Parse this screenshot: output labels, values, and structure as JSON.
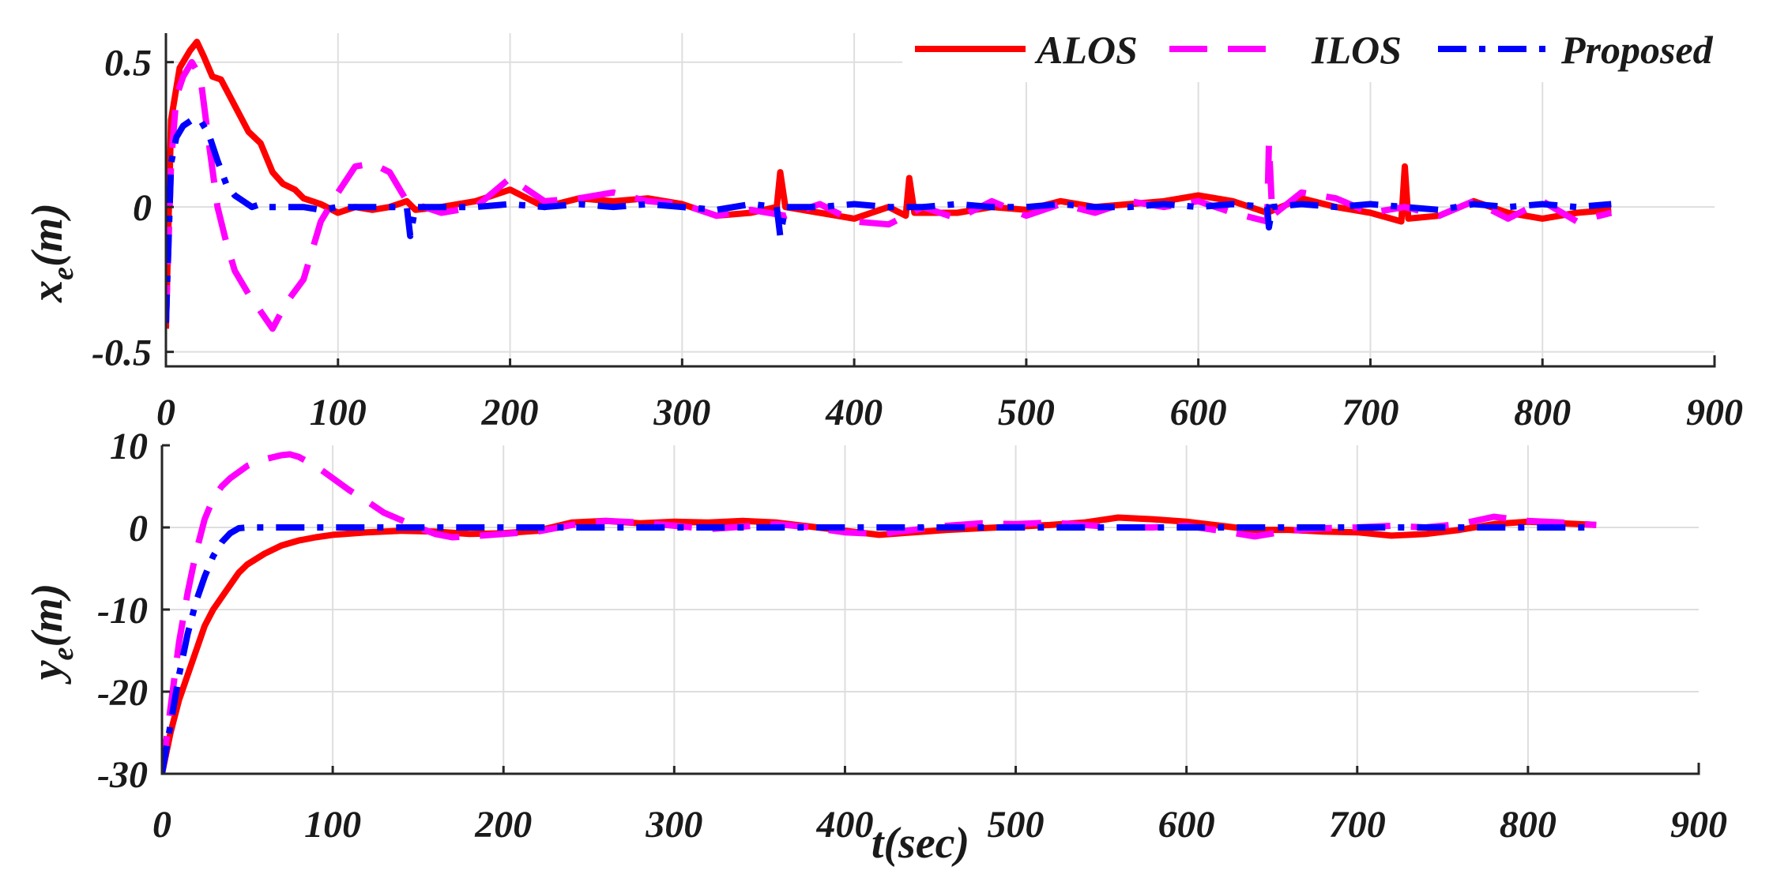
{
  "chart_data": [
    {
      "type": "line",
      "ylabel": "x",
      "ylabel_sub": "e",
      "ylabel_unit": "(m)",
      "xlabel": "",
      "xlim": [
        0,
        900
      ],
      "ylim": [
        -0.55,
        0.6
      ],
      "x_ticks": [
        "0",
        "100",
        "200",
        "300",
        "400",
        "500",
        "600",
        "700",
        "800",
        "900"
      ],
      "y_ticks": [
        {
          "value": 0.5,
          "label": "0.5"
        },
        {
          "value": 0,
          "label": "0"
        },
        {
          "value": -0.5,
          "label": "-0.5"
        }
      ],
      "grid": true,
      "legend": {
        "placement": "top-right",
        "orientation": "horizontal"
      },
      "series": [
        {
          "name": "ALOS",
          "color": "#ff0000",
          "style": "solid",
          "x": [
            0,
            3,
            8,
            14,
            18,
            22,
            27,
            32,
            40,
            48,
            55,
            62,
            68,
            75,
            80,
            90,
            100,
            110,
            120,
            130,
            140,
            145,
            160,
            180,
            200,
            220,
            240,
            260,
            280,
            300,
            320,
            340,
            355,
            357,
            360,
            380,
            400,
            420,
            430,
            432,
            435,
            460,
            480,
            500,
            520,
            540,
            560,
            580,
            600,
            620,
            640,
            660,
            680,
            700,
            718,
            720,
            722,
            740,
            760,
            780,
            800,
            820,
            840
          ],
          "y": [
            -0.42,
            0.3,
            0.48,
            0.54,
            0.57,
            0.52,
            0.45,
            0.44,
            0.35,
            0.26,
            0.22,
            0.12,
            0.08,
            0.06,
            0.03,
            0.01,
            -0.02,
            0.0,
            -0.01,
            0.0,
            0.02,
            -0.01,
            0.0,
            0.02,
            0.06,
            0.0,
            0.03,
            0.02,
            0.03,
            0.01,
            -0.03,
            -0.02,
            0.0,
            0.12,
            0.0,
            -0.02,
            -0.04,
            0.0,
            -0.03,
            0.1,
            -0.02,
            -0.02,
            0.0,
            -0.01,
            0.02,
            0.0,
            0.01,
            0.02,
            0.04,
            0.02,
            -0.02,
            0.03,
            0.0,
            -0.02,
            -0.05,
            0.14,
            -0.04,
            -0.03,
            0.02,
            -0.02,
            -0.04,
            -0.02,
            -0.01
          ]
        },
        {
          "name": "ILOS",
          "color": "#ff00ff",
          "style": "dashed",
          "x": [
            0,
            3,
            6,
            10,
            15,
            20,
            25,
            30,
            35,
            40,
            48,
            55,
            62,
            70,
            80,
            90,
            100,
            110,
            120,
            130,
            140,
            160,
            180,
            200,
            220,
            240,
            260,
            280,
            300,
            320,
            340,
            360,
            380,
            400,
            420,
            440,
            460,
            480,
            500,
            520,
            540,
            560,
            580,
            600,
            620,
            640,
            641,
            643,
            660,
            680,
            700,
            720,
            740,
            760,
            780,
            800,
            820,
            840
          ],
          "y": [
            -0.4,
            0.15,
            0.38,
            0.45,
            0.5,
            0.45,
            0.22,
            0.0,
            -0.12,
            -0.22,
            -0.3,
            -0.36,
            -0.42,
            -0.33,
            -0.25,
            -0.05,
            0.05,
            0.14,
            0.15,
            0.12,
            0.02,
            -0.02,
            0.0,
            0.1,
            0.02,
            0.03,
            0.05,
            0.02,
            0.01,
            -0.03,
            -0.01,
            -0.03,
            0.01,
            -0.05,
            -0.06,
            0.0,
            -0.04,
            0.02,
            -0.03,
            0.01,
            -0.02,
            0.02,
            0.0,
            0.02,
            -0.02,
            -0.05,
            0.22,
            -0.03,
            0.05,
            0.03,
            -0.02,
            0.0,
            -0.03,
            0.02,
            -0.04,
            0.02,
            -0.05,
            -0.02
          ]
        },
        {
          "name": "Proposed",
          "color": "#0000ff",
          "style": "dashdot",
          "x": [
            0,
            3,
            6,
            10,
            15,
            20,
            25,
            30,
            35,
            40,
            45,
            50,
            55,
            60,
            70,
            80,
            90,
            100,
            120,
            140,
            142,
            145,
            160,
            180,
            200,
            220,
            240,
            260,
            280,
            300,
            320,
            340,
            355,
            357,
            360,
            380,
            400,
            420,
            440,
            460,
            480,
            500,
            520,
            540,
            560,
            580,
            600,
            620,
            640,
            641,
            643,
            660,
            680,
            700,
            720,
            740,
            760,
            780,
            800,
            820,
            840
          ],
          "y": [
            -0.4,
            0.15,
            0.24,
            0.28,
            0.3,
            0.3,
            0.25,
            0.16,
            0.08,
            0.04,
            0.02,
            0.0,
            0.01,
            0.0,
            0.0,
            0.0,
            -0.01,
            0.0,
            0.0,
            0.0,
            -0.1,
            0.0,
            0.0,
            0.0,
            0.01,
            0.0,
            0.01,
            0.0,
            0.01,
            0.0,
            -0.01,
            0.01,
            0.0,
            -0.1,
            0.0,
            0.0,
            0.01,
            0.0,
            0.0,
            0.01,
            0.0,
            0.0,
            0.01,
            0.0,
            0.0,
            0.01,
            0.0,
            0.01,
            0.0,
            -0.07,
            0.0,
            0.01,
            0.0,
            0.01,
            0.0,
            -0.01,
            0.01,
            0.0,
            0.01,
            0.0,
            0.01
          ]
        }
      ]
    },
    {
      "type": "line",
      "ylabel": "y",
      "ylabel_sub": "e",
      "ylabel_unit": "(m)",
      "xlabel": "t(sec)",
      "xlim": [
        0,
        900
      ],
      "ylim": [
        -30,
        10
      ],
      "x_ticks": [
        "0",
        "100",
        "200",
        "300",
        "400",
        "500",
        "600",
        "700",
        "800",
        "900"
      ],
      "y_ticks": [
        {
          "value": 10,
          "label": "10"
        },
        {
          "value": 0,
          "label": "0"
        },
        {
          "value": -10,
          "label": "-10"
        },
        {
          "value": -20,
          "label": "-20"
        },
        {
          "value": -30,
          "label": "-30"
        }
      ],
      "grid": true,
      "series": [
        {
          "name": "ALOS",
          "color": "#ff0000",
          "style": "solid",
          "x": [
            0,
            5,
            10,
            15,
            20,
            25,
            30,
            35,
            40,
            45,
            50,
            60,
            70,
            80,
            90,
            100,
            120,
            140,
            160,
            180,
            200,
            220,
            240,
            260,
            280,
            300,
            320,
            340,
            360,
            380,
            400,
            420,
            440,
            460,
            480,
            500,
            520,
            540,
            560,
            580,
            600,
            620,
            640,
            660,
            680,
            700,
            720,
            740,
            760,
            780,
            800,
            820,
            840
          ],
          "y": [
            -30,
            -25,
            -21,
            -18,
            -15,
            -12,
            -10,
            -8.5,
            -7,
            -5.5,
            -4.5,
            -3.2,
            -2.2,
            -1.6,
            -1.2,
            -0.9,
            -0.6,
            -0.4,
            -0.5,
            -0.8,
            -0.7,
            -0.4,
            0.6,
            0.8,
            0.5,
            0.7,
            0.6,
            0.8,
            0.6,
            0.1,
            -0.4,
            -0.9,
            -0.6,
            -0.3,
            -0.1,
            0.1,
            0.3,
            0.6,
            1.2,
            1.0,
            0.7,
            0.2,
            -0.3,
            -0.3,
            -0.5,
            -0.6,
            -1.0,
            -0.8,
            -0.3,
            0.4,
            0.7,
            0.5,
            0.3
          ]
        },
        {
          "name": "ILOS",
          "color": "#ff00ff",
          "style": "dashed",
          "x": [
            0,
            5,
            10,
            15,
            20,
            25,
            30,
            35,
            40,
            50,
            60,
            70,
            75,
            80,
            90,
            100,
            110,
            120,
            130,
            140,
            150,
            160,
            170,
            180,
            200,
            220,
            240,
            260,
            280,
            300,
            320,
            340,
            360,
            380,
            400,
            420,
            440,
            460,
            480,
            500,
            520,
            540,
            560,
            580,
            600,
            620,
            640,
            660,
            680,
            700,
            720,
            740,
            760,
            780,
            800,
            820,
            840
          ],
          "y": [
            -30,
            -22,
            -14,
            -8,
            -3,
            1,
            3.5,
            5,
            6,
            7.5,
            8.3,
            8.8,
            8.9,
            8.6,
            7.5,
            6.0,
            4.5,
            3.2,
            1.8,
            0.9,
            0.0,
            -0.8,
            -1.2,
            -1.1,
            -0.8,
            -0.5,
            0.3,
            0.8,
            0.6,
            0.2,
            -0.2,
            0.1,
            0.4,
            0.0,
            -0.6,
            -0.8,
            -0.3,
            0.2,
            0.5,
            0.4,
            0.6,
            0.3,
            0.0,
            0.0,
            0.2,
            -0.4,
            -1.1,
            -0.4,
            -0.1,
            0.0,
            0.2,
            0.0,
            0.4,
            1.3,
            0.8,
            0.6,
            0.3
          ]
        },
        {
          "name": "Proposed",
          "color": "#0000ff",
          "style": "dashdot",
          "x": [
            0,
            5,
            10,
            15,
            20,
            25,
            30,
            35,
            40,
            45,
            50,
            60,
            100,
            200,
            300,
            400,
            500,
            600,
            700,
            800,
            840
          ],
          "y": [
            -30,
            -24,
            -18,
            -13,
            -9,
            -6,
            -3.5,
            -1.8,
            -0.7,
            -0.1,
            0,
            0,
            0,
            0,
            0,
            0,
            0,
            0,
            0,
            0,
            0
          ]
        }
      ]
    }
  ]
}
